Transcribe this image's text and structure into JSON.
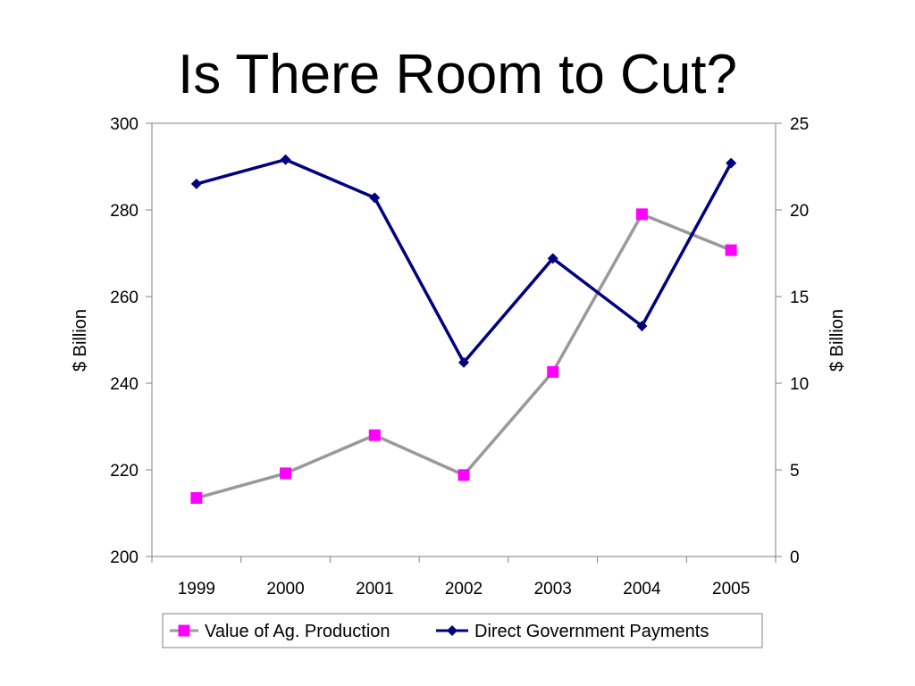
{
  "slide": {
    "title": "Is There Room to Cut?"
  },
  "chart_data": {
    "type": "line",
    "title": "",
    "categories": [
      "1999",
      "2000",
      "2001",
      "2002",
      "2003",
      "2004",
      "2005"
    ],
    "y_left": {
      "label": "$ Billion",
      "range": [
        200,
        300
      ],
      "ticks": [
        "200",
        "220",
        "240",
        "260",
        "280",
        "300"
      ]
    },
    "y_right": {
      "label": "$ Billion",
      "range": [
        0,
        25
      ],
      "ticks": [
        "0",
        "5",
        "10",
        "15",
        "20",
        "25"
      ]
    },
    "series": [
      {
        "name": "Value of Ag. Production",
        "axis": "left",
        "color": "#999999",
        "marker": "square",
        "marker_color": "#ff00ff",
        "values": [
          213.5,
          219.2,
          228.0,
          218.8,
          242.6,
          279.0,
          270.7
        ]
      },
      {
        "name": "Direct Government Payments",
        "axis": "right",
        "color": "#000080",
        "marker": "diamond",
        "marker_color": "#000080",
        "values": [
          21.5,
          22.9,
          20.7,
          11.2,
          17.2,
          13.3,
          22.7
        ]
      }
    ],
    "grid": false,
    "legend": "bottom"
  }
}
